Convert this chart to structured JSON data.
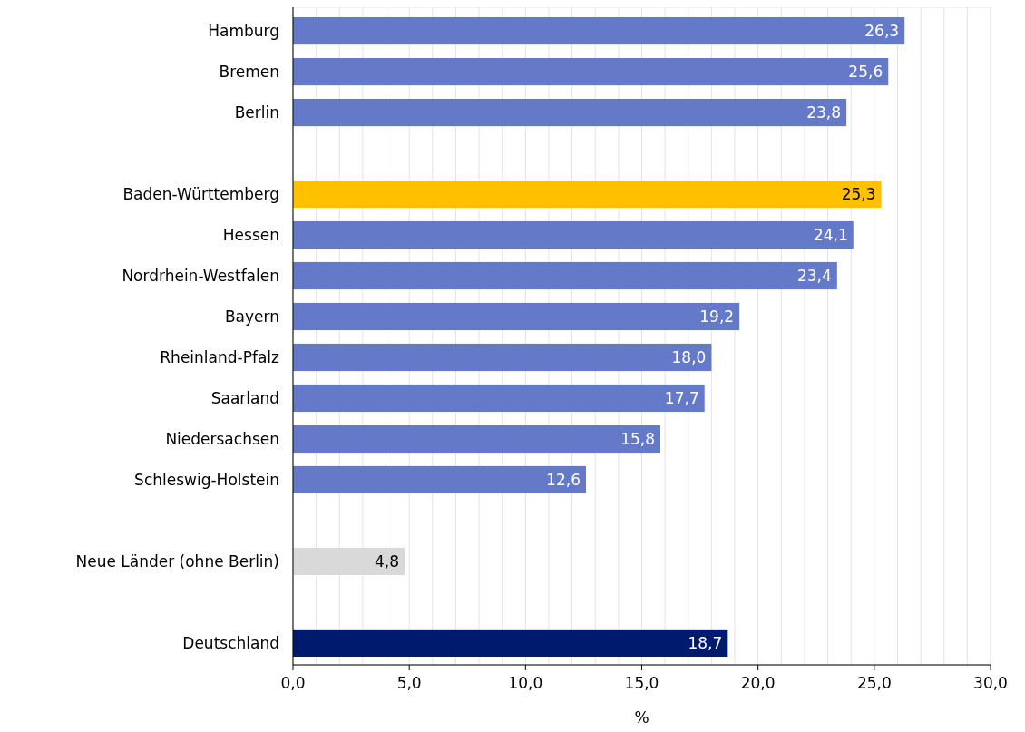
{
  "chart_data": {
    "type": "bar",
    "orientation": "horizontal",
    "xlabel": "%",
    "categories": [
      "Hamburg",
      "Bremen",
      "Berlin",
      null,
      "Baden-Württemberg",
      "Hessen",
      "Nordrhein-Westfalen",
      "Bayern",
      "Rheinland-Pfalz",
      "Saarland",
      "Niedersachsen",
      "Schleswig-Holstein",
      null,
      "Neue Länder (ohne Berlin)",
      null,
      "Deutschland"
    ],
    "values": [
      26.3,
      25.6,
      23.8,
      null,
      25.3,
      24.1,
      23.4,
      19.2,
      18.0,
      17.7,
      15.8,
      12.6,
      null,
      4.8,
      null,
      18.7
    ],
    "colors": [
      "#6479c8",
      "#6479c8",
      "#6479c8",
      null,
      "#ffc000",
      "#6479c8",
      "#6479c8",
      "#6479c8",
      "#6479c8",
      "#6479c8",
      "#6479c8",
      "#6479c8",
      null,
      "#d9d9d9",
      null,
      "#001a6e"
    ],
    "value_labels": [
      "26,3",
      "25,6",
      "23,8",
      null,
      "25,3",
      "24,1",
      "23,4",
      "19,2",
      "18,0",
      "17,7",
      "15,8",
      "12,6",
      null,
      "4,8",
      null,
      "18,7"
    ],
    "xlim": [
      0,
      30
    ],
    "xticks": [
      {
        "value": 0,
        "label": "0,0"
      },
      {
        "value": 1,
        "label": null
      },
      {
        "value": 2,
        "label": null
      },
      {
        "value": 3,
        "label": null
      },
      {
        "value": 4,
        "label": null
      },
      {
        "value": 5,
        "label": "5,0"
      },
      {
        "value": 6,
        "label": null
      },
      {
        "value": 7,
        "label": null
      },
      {
        "value": 8,
        "label": null
      },
      {
        "value": 9,
        "label": null
      },
      {
        "value": 10,
        "label": "10,0"
      },
      {
        "value": 11,
        "label": null
      },
      {
        "value": 12,
        "label": null
      },
      {
        "value": 13,
        "label": null
      },
      {
        "value": 14,
        "label": null
      },
      {
        "value": 15,
        "label": "15,0"
      },
      {
        "value": 16,
        "label": null
      },
      {
        "value": 17,
        "label": null
      },
      {
        "value": 18,
        "label": null
      },
      {
        "value": 19,
        "label": null
      },
      {
        "value": 20,
        "label": "20,0"
      },
      {
        "value": 21,
        "label": null
      },
      {
        "value": 22,
        "label": null
      },
      {
        "value": 23,
        "label": null
      },
      {
        "value": 24,
        "label": null
      },
      {
        "value": 25,
        "label": "25,0"
      },
      {
        "value": 26,
        "label": null
      },
      {
        "value": 27,
        "label": null
      },
      {
        "value": 28,
        "label": null
      },
      {
        "value": 29,
        "label": null
      },
      {
        "value": 30,
        "label": "30,0"
      }
    ],
    "grid": "x"
  }
}
